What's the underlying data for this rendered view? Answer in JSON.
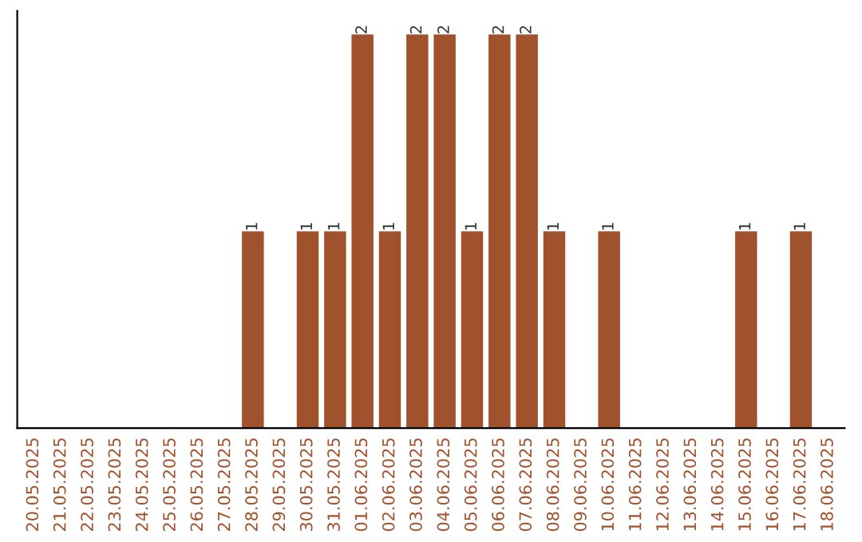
{
  "chart_data": {
    "type": "bar",
    "categories": [
      "20.05.2025",
      "21.05.2025",
      "22.05.2025",
      "23.05.2025",
      "24.05.2025",
      "25.05.2025",
      "26.05.2025",
      "27.05.2025",
      "28.05.2025",
      "29.05.2025",
      "30.05.2025",
      "31.05.2025",
      "01.06.2025",
      "02.06.2025",
      "03.06.2025",
      "04.06.2025",
      "05.06.2025",
      "06.06.2025",
      "07.06.2025",
      "08.06.2025",
      "09.06.2025",
      "10.06.2025",
      "11.06.2025",
      "12.06.2025",
      "13.06.2025",
      "14.06.2025",
      "15.06.2025",
      "16.06.2025",
      "17.06.2025",
      "18.06.2025"
    ],
    "values": [
      0,
      0,
      0,
      0,
      0,
      0,
      0,
      0,
      1,
      0,
      1,
      1,
      2,
      1,
      2,
      2,
      1,
      2,
      2,
      1,
      0,
      1,
      0,
      0,
      0,
      0,
      1,
      0,
      1,
      0
    ],
    "value_labels": [
      null,
      null,
      null,
      null,
      null,
      null,
      null,
      null,
      "1",
      null,
      "1",
      "1",
      "2",
      "1",
      "2",
      "2",
      "1",
      "2",
      "2",
      "1",
      null,
      "1",
      null,
      null,
      null,
      null,
      "1",
      null,
      "1",
      null
    ],
    "color": "#a0522d",
    "grid": false,
    "legend": false
  }
}
